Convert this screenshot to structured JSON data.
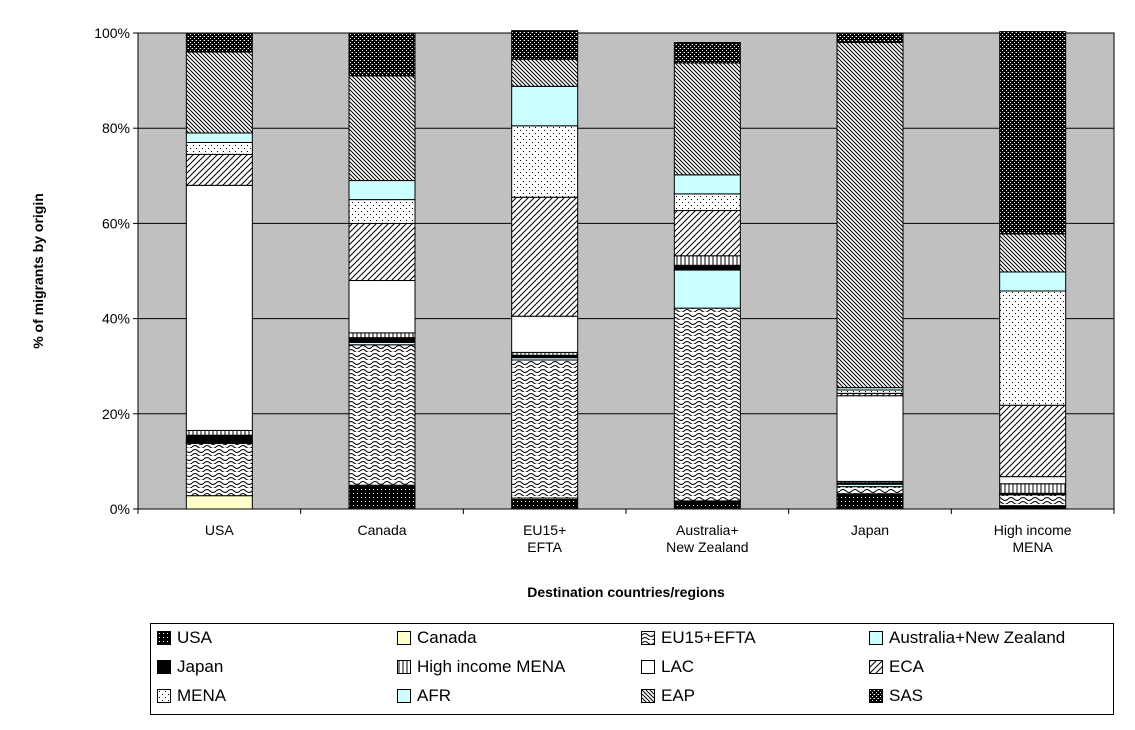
{
  "chart_data": {
    "type": "bar",
    "stacked": true,
    "percent": true,
    "title": "",
    "xlabel": "Destination countries/regions",
    "ylabel": "% of migrants by origin",
    "ylim": [
      0,
      100
    ],
    "yticks": [
      "0%",
      "20%",
      "40%",
      "60%",
      "80%",
      "100%"
    ],
    "grid": true,
    "plot_background": "#c0c0c0",
    "legend_position": "bottom",
    "categories": [
      [
        "USA"
      ],
      [
        "Canada"
      ],
      [
        "EU15+",
        "EFTA"
      ],
      [
        "Australia+",
        "New Zealand"
      ],
      [
        "Japan"
      ],
      [
        "High income",
        "MENA"
      ]
    ],
    "series": [
      {
        "name": "USA",
        "pattern": "dots-black",
        "values": [
          0,
          5,
          2,
          1.5,
          3,
          0.5
        ]
      },
      {
        "name": "Canada",
        "pattern": "solid-yellow",
        "values": [
          2.8,
          0,
          0.3,
          0.2,
          0.2,
          0.2
        ]
      },
      {
        "name": "EU15+EFTA",
        "pattern": "waves",
        "values": [
          11,
          29.5,
          29,
          40.5,
          1.5,
          2.3
        ]
      },
      {
        "name": "Australia+New Zealand",
        "pattern": "solid-cyan",
        "values": [
          0.2,
          0.5,
          0.5,
          8,
          0.5,
          0.2
        ]
      },
      {
        "name": "Japan",
        "pattern": "solid-black",
        "values": [
          1.5,
          1,
          0.5,
          1,
          0.3,
          0.1
        ]
      },
      {
        "name": "High income MENA",
        "pattern": "vlines",
        "values": [
          1,
          1,
          0.6,
          2,
          0.3,
          2
        ]
      },
      {
        "name": "LAC",
        "pattern": "solid-white",
        "values": [
          51.5,
          11,
          7.6,
          0,
          18,
          1.5
        ]
      },
      {
        "name": "ECA",
        "pattern": "diag-wide",
        "values": [
          6.5,
          12,
          25,
          9.5,
          0.5,
          15
        ]
      },
      {
        "name": "MENA",
        "pattern": "dots-sparse",
        "values": [
          2.5,
          5,
          15,
          3.5,
          0.7,
          24
        ]
      },
      {
        "name": "AFR",
        "pattern": "solid-cyan",
        "values": [
          2,
          4,
          8.3,
          4,
          0.5,
          4
        ]
      },
      {
        "name": "EAP",
        "pattern": "diag-dense",
        "values": [
          17,
          22,
          5.7,
          23.5,
          72.5,
          8
        ]
      },
      {
        "name": "SAS",
        "pattern": "checker",
        "values": [
          4,
          9,
          6,
          4.3,
          2,
          42.5
        ]
      }
    ]
  },
  "colors": {
    "plot_bg": "#c0c0c0",
    "cyan": "#ccffff",
    "yellow": "#ffffcc",
    "black": "#000000",
    "white": "#ffffff"
  }
}
